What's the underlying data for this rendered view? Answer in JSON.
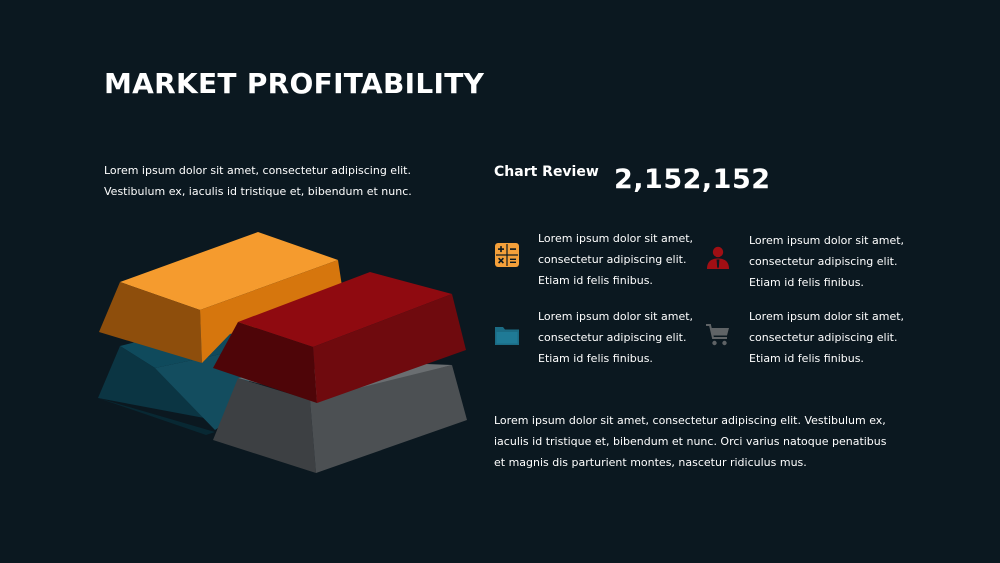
{
  "slide": {
    "title": "MARKET PROFITABILITY",
    "intro": "Lorem ipsum dolor sit amet, consectetur adipiscing elit. Vestibulum ex, iaculis id tristique et, bibendum et nunc.",
    "review_label": "Chart Review",
    "review_value": "2,152,152",
    "features": [
      {
        "icon": "calculator-icon",
        "text": "Lorem ipsum dolor sit amet, consectetur adipiscing elit. Etiam id felis finibus.",
        "color": "#f5a03a"
      },
      {
        "icon": "user-icon",
        "text": "Lorem ipsum dolor sit amet, consectetur adipiscing elit. Etiam id felis finibus.",
        "color": "#a00f14"
      },
      {
        "icon": "folder-icon",
        "text": "Lorem ipsum dolor sit amet, consectetur adipiscing elit. Etiam id felis finibus.",
        "color": "#1b6b84"
      },
      {
        "icon": "cart-icon",
        "text": "Lorem ipsum dolor sit amet, consectetur adipiscing elit. Etiam id felis finibus.",
        "color": "#5f6366"
      }
    ],
    "summary": "Lorem ipsum dolor sit amet, consectetur adipiscing elit. Vestibulum ex, iaculis id tristique et, bibendum et nunc. Orci varius natoque penatibus et magnis dis parturient montes, nascetur ridiculus mus."
  },
  "colors": {
    "background": "#0b1820",
    "orange": "#f5a03a",
    "red": "#a00f14",
    "teal": "#1b6b84",
    "gray": "#5f6366"
  }
}
